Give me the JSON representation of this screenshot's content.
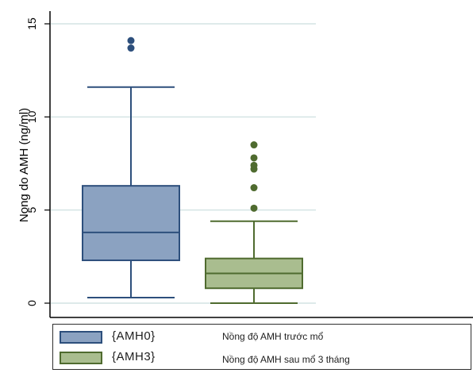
{
  "chart_data": {
    "type": "box",
    "ylabel": "Nong do AMH (ng/ml)",
    "ylim": [
      0,
      15
    ],
    "yticks": [
      0,
      5,
      10,
      15
    ],
    "grid": true,
    "legend_position": "bottom",
    "series": [
      {
        "name": "{AMH0}",
        "description": "Nồng độ AMH trước mổ",
        "color": "#8ba2c1",
        "edge_color": "#2d4f7c",
        "whisker_low": 0.3,
        "q1": 2.3,
        "median": 3.8,
        "q3": 6.3,
        "whisker_high": 11.6,
        "outliers": [
          13.7,
          14.1
        ]
      },
      {
        "name": "{AMH3}",
        "description": "Nồng độ AMH sau mổ 3 tháng",
        "color": "#a9bd8f",
        "edge_color": "#4f6b2f",
        "whisker_low": 0.0,
        "q1": 0.8,
        "median": 1.6,
        "q3": 2.4,
        "whisker_high": 4.4,
        "outliers": [
          5.1,
          6.2,
          7.2,
          7.4,
          7.8,
          8.5
        ]
      }
    ]
  }
}
